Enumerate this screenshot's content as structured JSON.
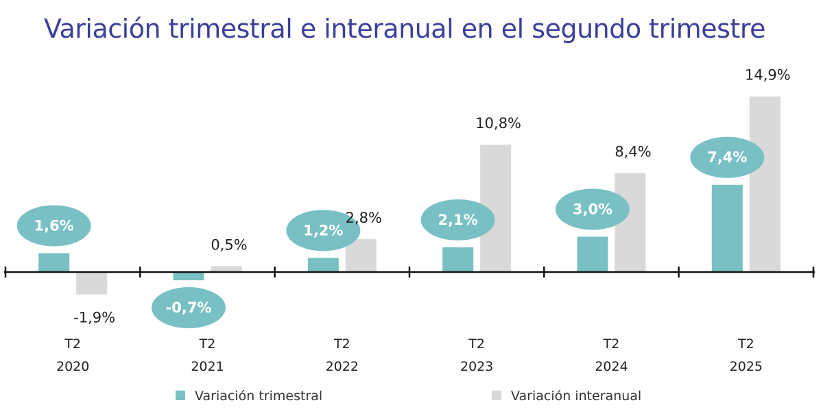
{
  "chart_data": {
    "type": "bar",
    "title": "Variación trimestral e interanual en el segundo trimestre",
    "categories": [
      {
        "line1": "T2",
        "line2": "2020"
      },
      {
        "line1": "T2",
        "line2": "2021"
      },
      {
        "line1": "T2",
        "line2": "2022"
      },
      {
        "line1": "T2",
        "line2": "2023"
      },
      {
        "line1": "T2",
        "line2": "2024"
      },
      {
        "line1": "T2",
        "line2": "2025"
      }
    ],
    "series": [
      {
        "name": "Variación trimestral",
        "color": "#79c0c4",
        "values": [
          1.6,
          -0.7,
          1.2,
          2.1,
          3.0,
          7.4
        ],
        "labels": [
          "1,6%",
          "-0,7%",
          "1,2%",
          "2,1%",
          "3,0%",
          "7,4%"
        ]
      },
      {
        "name": "Variación interanual",
        "color": "#d9d9d9",
        "values": [
          -1.9,
          0.5,
          2.8,
          10.8,
          8.4,
          14.9
        ],
        "labels": [
          "-1,9%",
          "0,5%",
          "2,8%",
          "10,8%",
          "8,4%",
          "14,9%"
        ]
      }
    ],
    "legend_position": "bottom",
    "grid": false
  }
}
